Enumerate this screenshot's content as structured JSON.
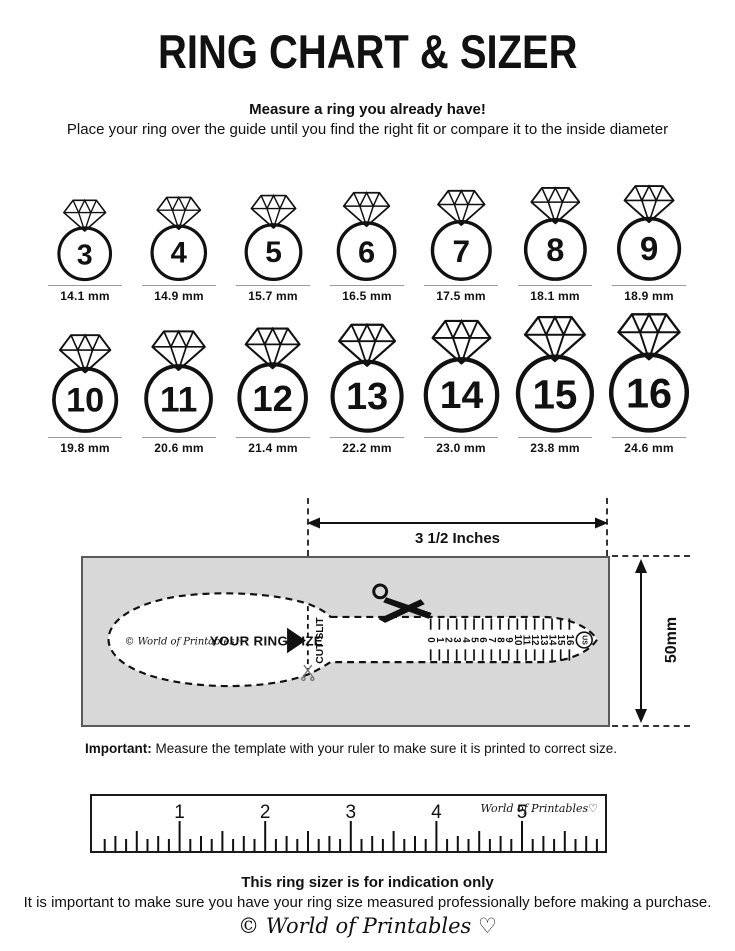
{
  "header": {
    "title": "RING CHART & SIZER",
    "subtitle_bold": "Measure a ring you already have!",
    "subtitle": "Place your ring over the guide until you find the right fit or compare it to the inside diameter"
  },
  "ring_chart": {
    "rows": [
      {
        "rings": [
          {
            "size": "3",
            "diameter_label": "14.1 mm"
          },
          {
            "size": "4",
            "diameter_label": "14.9 mm"
          },
          {
            "size": "5",
            "diameter_label": "15.7 mm"
          },
          {
            "size": "6",
            "diameter_label": "16.5 mm"
          },
          {
            "size": "7",
            "diameter_label": "17.5 mm"
          },
          {
            "size": "8",
            "diameter_label": "18.1 mm"
          },
          {
            "size": "9",
            "diameter_label": "18.9 mm"
          }
        ]
      },
      {
        "rings": [
          {
            "size": "10",
            "diameter_label": "19.8 mm"
          },
          {
            "size": "11",
            "diameter_label": "20.6 mm"
          },
          {
            "size": "12",
            "diameter_label": "21.4 mm"
          },
          {
            "size": "13",
            "diameter_label": "22.2 mm"
          },
          {
            "size": "14",
            "diameter_label": "23.0 mm"
          },
          {
            "size": "15",
            "diameter_label": "23.8 mm"
          },
          {
            "size": "16",
            "diameter_label": "24.6 mm"
          }
        ]
      }
    ]
  },
  "sizer": {
    "width_label": "3 1/2 Inches",
    "height_label": "50mm",
    "brand": "© World of Printables ♡",
    "ring_size_label": "YOUR RING SIZE",
    "cut_slit_label": "CUT SLIT",
    "scale_numbers": [
      "0",
      "1",
      "2",
      "3",
      "4",
      "5",
      "6",
      "7",
      "8",
      "9",
      "10",
      "11",
      "12",
      "13",
      "14",
      "15",
      "16"
    ],
    "scale_unit": "US"
  },
  "notes": {
    "important_label": "Important:",
    "important_text": "Measure the template with your ruler to make sure it is printed to correct size."
  },
  "ruler": {
    "inch_numbers": [
      "1",
      "2",
      "3",
      "4",
      "5"
    ],
    "brand": "World of Printables♡"
  },
  "footer": {
    "headline": "This ring sizer is for indication only",
    "text": "It is important to make sure you have your ring size measured professionally before making a purchase.",
    "brand": "© World of Printables ♡"
  },
  "colors": {
    "ink": "#111111",
    "panel_gray": "#d8d8d8",
    "line_gray": "#9a9a9a"
  }
}
